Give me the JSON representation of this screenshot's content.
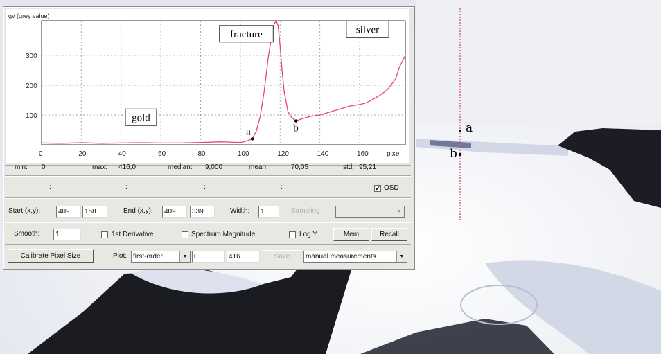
{
  "annotations": {
    "a_mark": "a",
    "b_mark": "b"
  },
  "chart_data": {
    "type": "line",
    "ylabel": "gv (grey value)",
    "xlabel": "pixel",
    "xlim": [
      0,
      183
    ],
    "ylim": [
      0,
      416
    ],
    "x_ticks": [
      0,
      20,
      40,
      60,
      80,
      100,
      120,
      140,
      160
    ],
    "y_ticks": [
      100,
      200,
      300
    ],
    "series_color": "#e5457a",
    "grid": true,
    "series": [
      {
        "x": [
          0,
          10,
          20,
          30,
          40,
          50,
          60,
          70,
          80,
          90,
          95,
          100,
          103,
          106,
          108,
          110,
          112,
          114,
          116,
          117,
          118,
          119,
          120,
          121,
          122,
          124,
          126,
          128,
          130,
          135,
          140,
          145,
          150,
          155,
          160,
          163,
          166,
          170,
          174,
          178,
          180,
          183
        ],
        "y": [
          6,
          5,
          7,
          5,
          6,
          7,
          6,
          6,
          8,
          10,
          9,
          8,
          12,
          20,
          45,
          95,
          180,
          290,
          375,
          405,
          416,
          400,
          330,
          250,
          180,
          110,
          90,
          80,
          85,
          95,
          100,
          110,
          120,
          130,
          135,
          140,
          150,
          165,
          185,
          220,
          260,
          300
        ]
      }
    ],
    "annotations": [
      {
        "text": "gold",
        "x": 50,
        "y": 90
      },
      {
        "text": "fracture",
        "x": 103,
        "y": 370
      },
      {
        "text": "silver",
        "x": 164,
        "y": 385
      },
      {
        "text": "a",
        "x": 106,
        "y": 20
      },
      {
        "text": "b",
        "x": 128,
        "y": 80
      }
    ]
  },
  "stats": {
    "min_label": "min:",
    "min_value": "0",
    "max_label": "max:",
    "max_value": "416,0",
    "median_label": "median:",
    "median_value": "9,000",
    "mean_label": "mean:",
    "mean_value": "70,05",
    "std_label": "std:",
    "std_value": "95,21"
  },
  "coords_row": {
    "colon": ":",
    "osd_label": "OSD",
    "osd_checked": "✔"
  },
  "line_row": {
    "start_label": "Start (x,y):",
    "start_x": "409",
    "start_y": "158",
    "end_label": "End (x,y):",
    "end_x": "409",
    "end_y": "339",
    "width_label": "Width:",
    "width_value": "1",
    "sampling_label": "Sampling",
    "sampling_value": ""
  },
  "options_row": {
    "smooth_label": "Smooth:",
    "smooth_value": "1",
    "derivative_label": "1st Derivative",
    "spectrum_label": "Spectrum Magnitude",
    "logy_label": "Log Y",
    "mem_label": "Mem",
    "recall_label": "Recall"
  },
  "bottom_row": {
    "calibrate_label": "Calibrate Pixel Size",
    "plot_label": "Plot:",
    "plot_value": "first-order",
    "range_min": "0",
    "range_max": "416",
    "save_label": "Save",
    "measure_value": "manual measurements"
  }
}
